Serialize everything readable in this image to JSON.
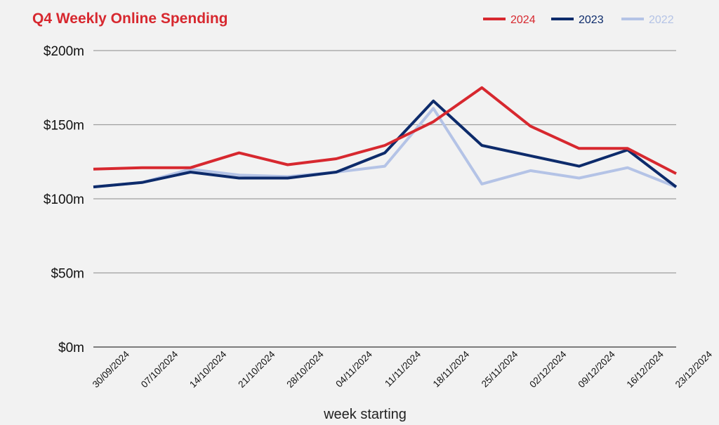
{
  "colors": {
    "background": "#f2f2f2",
    "title": "#d7282f",
    "grid": "#9e9e9e",
    "axis": "#555555"
  },
  "chart_data": {
    "type": "line",
    "title": "Q4 Weekly Online Spending",
    "xlabel": "week starting",
    "ylabel": "",
    "ylim": [
      0,
      200
    ],
    "yticks": [
      {
        "value": 0,
        "label": "$0m"
      },
      {
        "value": 50,
        "label": "$50m"
      },
      {
        "value": 100,
        "label": "$100m"
      },
      {
        "value": 150,
        "label": "$150m"
      },
      {
        "value": 200,
        "label": "$200m"
      }
    ],
    "grid": true,
    "legend_position": "top-right",
    "categories": [
      "30/09/2024",
      "07/10/2024",
      "14/10/2024",
      "21/10/2024",
      "28/10/2024",
      "04/11/2024",
      "11/11/2024",
      "18/11/2024",
      "25/11/2024",
      "02/12/2024",
      "09/12/2024",
      "16/12/2024",
      "23/12/2024"
    ],
    "series": [
      {
        "name": "2024",
        "color": "#d7282f",
        "values": [
          120,
          121,
          121,
          131,
          123,
          127,
          136,
          152,
          175,
          149,
          134,
          134,
          117
        ]
      },
      {
        "name": "2023",
        "color": "#0d2b6b",
        "values": [
          108,
          111,
          118,
          114,
          114,
          118,
          131,
          166,
          136,
          129,
          122,
          133,
          108
        ]
      },
      {
        "name": "2022",
        "color": "#b4c3e6",
        "values": [
          108,
          111,
          120,
          116,
          115,
          118,
          122,
          161,
          110,
          119,
          114,
          121,
          108
        ]
      }
    ]
  }
}
